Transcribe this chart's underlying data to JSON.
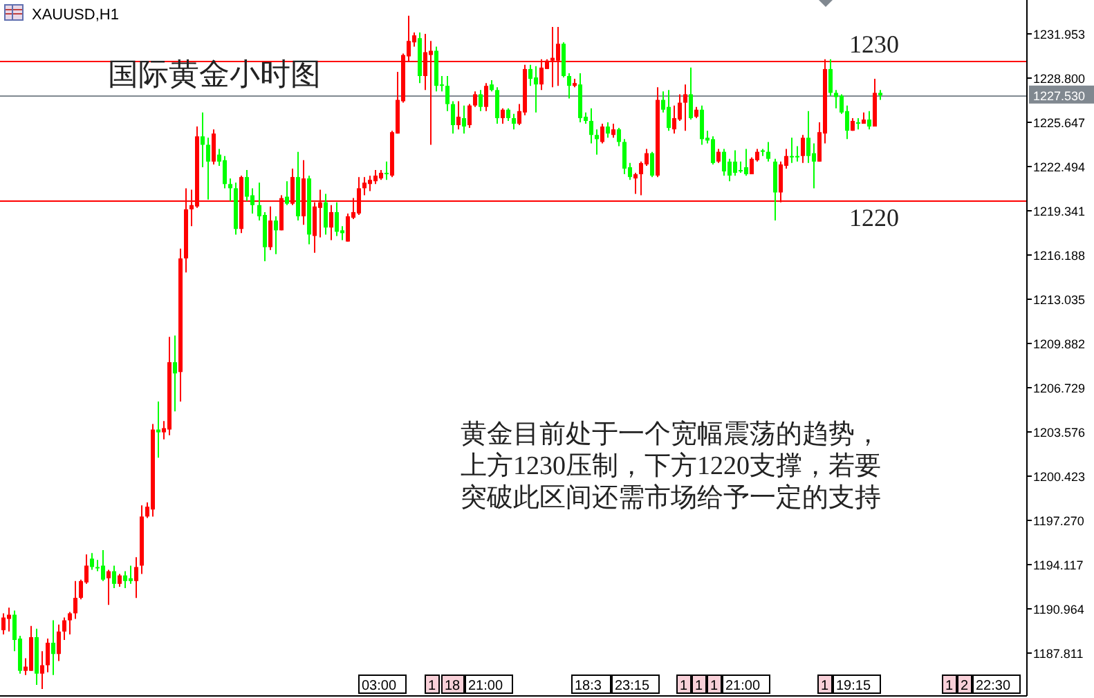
{
  "chart_data": {
    "type": "candlestick",
    "title": "国际黄金小时图",
    "subtitle": "XAUUSD,H1",
    "annotations": [
      "黄金目前处于一个宽幅震荡的趋势，",
      "上方1230压制，下方1220支撑，若要",
      "突破此区间还需市场给予一定的支持",
      "03:00",
      "1",
      "18",
      "21:00",
      "18:3",
      "23:15",
      "1",
      "1",
      "1",
      "21:00",
      "1",
      "19:15",
      "1",
      "2",
      "22:30"
    ],
    "colors": [
      "#ff0000",
      "#ff0000",
      "#00ff00",
      "#00ff00",
      "#ff0000",
      "#ff0000",
      "#00ff00",
      "#ff0000",
      "#ff0000",
      "#00ff00",
      "#ff0000",
      "#ff0000",
      "#ff0000",
      "#ff0000",
      "#ff0000",
      "#ff0000",
      "#00ff00",
      "#00ff00",
      "#00ff00",
      "#ff0000",
      "#00ff00",
      "#ff0000",
      "#00ff00",
      "#00ff00",
      "#ff0000",
      "#ff0000",
      "#ff0000",
      "#ff0000",
      "#00ff00",
      "#ff0000",
      "#ff0000",
      "#00ff00",
      "#ff0000",
      "#ff0000",
      "#ff0000",
      "#ff0000",
      "#00ff00",
      "#00ff00",
      "#ff0000",
      "#00ff00",
      "#00ff00",
      "#00ff00",
      "#00ff00",
      "#ff0000",
      "#00ff00",
      "#00ff00",
      "#00ff00",
      "#00ff00",
      "#ff0000",
      "#00ff00",
      "#ff0000",
      "#00ff00",
      "#ff0000",
      "#00ff00",
      "#ff0000",
      "#00ff00",
      "#ff0000",
      "#ff0000",
      "#00ff00",
      "#ff0000",
      "#00ff00",
      "#00ff00",
      "#ff0000",
      "#ff0000",
      "#ff0000",
      "#ff0000",
      "#ff0000",
      "#ff0000",
      "#ff0000",
      "#00ff00",
      "#ff0000",
      "#ff0000",
      "#ff0000",
      "#ff0000",
      "#ff0000",
      "#00ff00",
      "#ff0000",
      "#ff0000",
      "#00ff00",
      "#00ff00",
      "#00ff00",
      "#00ff00",
      "#ff0000",
      "#00ff00",
      "#ff0000",
      "#ff0000",
      "#00ff00",
      "#ff0000",
      "#00ff00",
      "#00ff00",
      "#ff0000",
      "#00ff00",
      "#00ff00",
      "#ff0000",
      "#ff0000",
      "#00ff00",
      "#00ff00",
      "#ff0000",
      "#ff0000",
      "#ff0000",
      "#ff0000",
      "#00ff00",
      "#00ff00",
      "#ff0000",
      "#00ff00",
      "#00ff00",
      "#00ff00",
      "#00ff00",
      "#ff0000",
      "#00ff00",
      "#ff0000",
      "#00ff00",
      "#00ff00",
      "#00ff00",
      "#ff0000",
      "#ff0000",
      "#ff0000",
      "#00ff00",
      "#ff0000",
      "#00ff00",
      "#00ff00",
      "#ff0000",
      "#ff0000",
      "#ff0000",
      "#00ff00",
      "#ff0000",
      "#00ff00",
      "#00ff00",
      "#00ff00",
      "#ff0000",
      "#00ff00",
      "#00ff00",
      "#00ff00",
      "#00ff00",
      "#00ff00",
      "#ff0000",
      "#ff0000",
      "#00ff00",
      "#00ff00",
      "#00ff00",
      "#ff0000",
      "#ff0000",
      "#00ff00",
      "#00ff00",
      "#ff0000",
      "#00ff00",
      "#00ff00",
      "#ff0000",
      "#ff0000",
      "#00ff00",
      "#00ff00",
      "#00ff00",
      "#00ff00",
      "#ff0000",
      "#00ff00",
      "#ff0000",
      "#00ff00",
      "#ff0000",
      "#00ff00",
      null,
      null,
      null,
      null,
      null,
      null,
      null,
      null,
      null,
      null,
      null,
      null,
      null,
      null,
      null,
      null,
      null,
      null,
      null,
      null,
      null,
      null,
      null,
      null,
      null,
      null
    ],
    "tick_labels": "y",
    "ylim": [
      1184.76,
      1234.32
    ],
    "yticks": [
      {
        "value": 1187.811,
        "label": "1187.811"
      },
      {
        "value": 1190.964,
        "label": "1190.964"
      },
      {
        "value": 1194.117,
        "label": "1194.117"
      },
      {
        "value": 1197.27,
        "label": "1197.270"
      },
      {
        "value": 1200.423,
        "label": "1200.423"
      },
      {
        "value": 1203.576,
        "label": "1203.576"
      },
      {
        "value": 1206.729,
        "label": "1206.729"
      },
      {
        "value": 1209.882,
        "label": "1209.882"
      },
      {
        "value": 1213.035,
        "label": "1213.035"
      },
      {
        "value": 1216.188,
        "label": "1216.188"
      },
      {
        "value": 1219.341,
        "label": "1219.341"
      },
      {
        "value": 1222.494,
        "label": "1222.494"
      },
      {
        "value": 1225.647,
        "label": "1225.647"
      },
      {
        "value": 1228.8,
        "label": "1228.800"
      },
      {
        "value": 1231.953,
        "label": "1231.953"
      }
    ],
    "ref_lines": [
      {
        "axis": "y",
        "value": 1230,
        "label": "1230",
        "color": "#ff0000"
      },
      {
        "axis": "y",
        "value": 1220,
        "label": "1220",
        "color": "#ff0000"
      },
      {
        "axis": "y",
        "value": 1227.53,
        "label": "1227.530",
        "color": "#808890"
      }
    ],
    "categories": [
      null,
      null,
      null,
      null,
      null,
      null,
      null,
      null,
      null,
      null,
      null,
      null,
      null,
      null,
      null,
      null,
      null,
      null,
      null,
      null,
      null,
      null,
      null,
      null,
      null,
      null,
      null,
      null,
      null,
      null,
      null,
      null,
      null,
      null,
      null,
      null,
      null,
      null,
      null,
      null,
      null,
      null,
      null,
      null,
      null,
      null,
      null,
      null,
      null,
      null,
      null,
      null,
      null,
      null,
      null,
      null,
      null,
      null,
      null,
      null,
      null,
      null,
      null,
      null,
      null,
      null,
      null,
      null,
      null,
      null,
      null,
      null,
      null,
      null,
      null,
      null,
      null,
      null,
      null,
      null,
      null,
      null,
      null,
      null,
      null,
      null,
      null,
      null,
      null,
      null,
      null,
      null,
      null,
      null,
      null,
      null,
      null,
      null,
      null,
      null,
      null,
      null,
      null,
      null,
      null,
      null,
      null,
      null,
      null,
      null,
      null,
      null,
      null,
      null,
      null,
      null,
      null,
      null,
      null,
      null,
      null,
      null,
      null,
      null,
      null,
      null,
      null,
      null,
      null,
      null,
      null,
      null,
      null,
      null,
      null,
      null,
      null,
      null,
      null,
      null,
      null,
      null,
      null,
      null,
      null,
      null,
      null,
      null,
      null,
      null,
      null,
      null,
      null,
      null,
      null,
      null,
      null,
      null,
      null,
      null,
      null,
      null,
      null,
      null,
      null,
      null,
      null,
      null,
      null,
      null,
      null,
      null,
      null,
      null,
      null,
      null,
      null,
      null,
      null,
      null,
      null,
      null,
      null,
      null,
      null
    ],
    "ohlc": [
      [
        1189.4,
        1190.6,
        1189.1,
        1190.3
      ],
      [
        1190.2,
        1191.0,
        1189.3,
        1190.5
      ],
      [
        1190.5,
        1190.8,
        1187.9,
        1188.7
      ],
      [
        1188.8,
        1189.0,
        1186.3,
        1186.5
      ],
      [
        1186.5,
        1187.4,
        1186.2,
        1186.8
      ],
      [
        1186.5,
        1189.7,
        1186.5,
        1188.9
      ],
      [
        1188.9,
        1189.5,
        1185.5,
        1186.3
      ],
      [
        1186.3,
        1187.9,
        1185.2,
        1186.9
      ],
      [
        1186.9,
        1188.8,
        1186.4,
        1188.5
      ],
      [
        1188.5,
        1190.1,
        1186.2,
        1187.7
      ],
      [
        1187.7,
        1189.8,
        1187.2,
        1189.3
      ],
      [
        1189.3,
        1190.3,
        1188.7,
        1190.1
      ],
      [
        1190.1,
        1190.7,
        1189.1,
        1190.6
      ],
      [
        1190.6,
        1192.9,
        1190.2,
        1191.7
      ],
      [
        1191.7,
        1193.0,
        1191.6,
        1192.9
      ],
      [
        1192.8,
        1194.8,
        1192.7,
        1194.0
      ],
      [
        1194.5,
        1194.9,
        1193.7,
        1193.9
      ],
      [
        1193.9,
        1194.4,
        1193.6,
        1193.8
      ],
      [
        1194.0,
        1195.1,
        1192.9,
        1193.0
      ],
      [
        1193.1,
        1193.7,
        1191.2,
        1193.6
      ],
      [
        1193.6,
        1194.0,
        1192.4,
        1192.7
      ],
      [
        1192.7,
        1193.4,
        1192.5,
        1193.3
      ],
      [
        1193.3,
        1193.6,
        1192.4,
        1192.9
      ],
      [
        1193.1,
        1194.0,
        1192.7,
        1192.9
      ],
      [
        1192.9,
        1194.6,
        1191.7,
        1193.9
      ],
      [
        1194.0,
        1198.3,
        1193.4,
        1197.5
      ],
      [
        1197.5,
        1198.5,
        1197.4,
        1198.2
      ],
      [
        1198.0,
        1204.1,
        1197.5,
        1203.7
      ],
      [
        1203.7,
        1205.7,
        1201.7,
        1203.5
      ],
      [
        1203.5,
        1204.3,
        1203.0,
        1203.8
      ],
      [
        1203.7,
        1210.3,
        1203.3,
        1208.5
      ],
      [
        1208.5,
        1210.4,
        1205.0,
        1207.7
      ],
      [
        1207.8,
        1216.6,
        1205.7,
        1215.9
      ],
      [
        1215.9,
        1220.9,
        1214.9,
        1219.4
      ],
      [
        1219.4,
        1220.8,
        1218.2,
        1219.7
      ],
      [
        1219.6,
        1225.3,
        1219.5,
        1224.6
      ],
      [
        1224.6,
        1226.3,
        1222.4,
        1224.0
      ],
      [
        1224.0,
        1224.5,
        1220.1,
        1222.8
      ],
      [
        1222.8,
        1225.1,
        1222.6,
        1224.8
      ],
      [
        1223.3,
        1223.7,
        1222.5,
        1222.8
      ],
      [
        1222.9,
        1223.2,
        1220.9,
        1221.2
      ],
      [
        1221.2,
        1221.6,
        1220.0,
        1220.9
      ],
      [
        1220.9,
        1221.3,
        1217.6,
        1218.0
      ],
      [
        1218.0,
        1221.8,
        1217.7,
        1221.7
      ],
      [
        1221.7,
        1222.2,
        1220.0,
        1220.3
      ],
      [
        1220.4,
        1220.9,
        1219.1,
        1219.7
      ],
      [
        1219.7,
        1221.3,
        1218.6,
        1218.9
      ],
      [
        1219.0,
        1219.2,
        1215.7,
        1216.7
      ],
      [
        1216.7,
        1219.6,
        1216.5,
        1218.6
      ],
      [
        1218.6,
        1218.9,
        1216.2,
        1217.9
      ],
      [
        1217.9,
        1220.4,
        1217.9,
        1220.2
      ],
      [
        1220.3,
        1221.4,
        1219.7,
        1219.8
      ],
      [
        1219.8,
        1222.3,
        1219.7,
        1221.7
      ],
      [
        1221.7,
        1223.5,
        1218.6,
        1218.9
      ],
      [
        1218.9,
        1222.9,
        1218.3,
        1221.6
      ],
      [
        1221.6,
        1221.8,
        1216.9,
        1217.6
      ],
      [
        1217.5,
        1219.9,
        1216.3,
        1219.6
      ],
      [
        1219.5,
        1220.8,
        1217.4,
        1219.9
      ],
      [
        1219.9,
        1220.5,
        1217.6,
        1218.1
      ],
      [
        1218.1,
        1219.7,
        1217.2,
        1219.2
      ],
      [
        1219.2,
        1219.9,
        1217.5,
        1217.8
      ],
      [
        1217.9,
        1218.2,
        1217.2,
        1217.7
      ],
      [
        1217.1,
        1219.1,
        1217.1,
        1218.9
      ],
      [
        1218.8,
        1220.2,
        1218.7,
        1219.2
      ],
      [
        1219.1,
        1221.7,
        1219.0,
        1220.9
      ],
      [
        1220.9,
        1221.7,
        1220.4,
        1221.3
      ],
      [
        1221.2,
        1221.8,
        1220.7,
        1221.5
      ],
      [
        1221.4,
        1222.2,
        1221.2,
        1221.8
      ],
      [
        1221.6,
        1222.2,
        1221.5,
        1222.0
      ],
      [
        1222.0,
        1222.8,
        1221.5,
        1221.9
      ],
      [
        1221.8,
        1225.0,
        1221.7,
        1224.9
      ],
      [
        1224.8,
        1229.2,
        1224.8,
        1227.2
      ],
      [
        1227.1,
        1230.5,
        1227.0,
        1230.4
      ],
      [
        1230.3,
        1233.2,
        1229.9,
        1231.4
      ],
      [
        1231.3,
        1232.0,
        1231.0,
        1231.8
      ],
      [
        1231.6,
        1232.0,
        1228.4,
        1228.9
      ],
      [
        1228.9,
        1231.9,
        1227.9,
        1230.6
      ],
      [
        1230.4,
        1231.4,
        1224.0,
        1230.7
      ],
      [
        1230.7,
        1231.0,
        1227.8,
        1228.2
      ],
      [
        1228.3,
        1228.9,
        1227.8,
        1228.2
      ],
      [
        1228.2,
        1228.9,
        1226.4,
        1226.9
      ],
      [
        1226.9,
        1227.1,
        1224.8,
        1225.4
      ],
      [
        1225.4,
        1227.1,
        1225.1,
        1226.0
      ],
      [
        1225.9,
        1226.8,
        1224.8,
        1225.3
      ],
      [
        1225.4,
        1226.9,
        1225.2,
        1226.8
      ],
      [
        1226.8,
        1227.8,
        1226.7,
        1227.6
      ],
      [
        1227.6,
        1227.9,
        1226.4,
        1226.7
      ],
      [
        1226.7,
        1228.4,
        1226.4,
        1228.2
      ],
      [
        1228.3,
        1228.6,
        1227.8,
        1227.9
      ],
      [
        1227.9,
        1228.1,
        1225.5,
        1225.9
      ],
      [
        1225.9,
        1226.6,
        1225.5,
        1226.5
      ],
      [
        1226.5,
        1226.6,
        1225.7,
        1225.9
      ],
      [
        1225.9,
        1226.2,
        1225.1,
        1225.5
      ],
      [
        1225.5,
        1226.9,
        1225.4,
        1226.4
      ],
      [
        1226.3,
        1229.7,
        1226.1,
        1229.4
      ],
      [
        1229.4,
        1229.7,
        1228.2,
        1228.7
      ],
      [
        1228.8,
        1229.6,
        1226.3,
        1228.3
      ],
      [
        1228.3,
        1230.1,
        1227.9,
        1229.5
      ],
      [
        1229.4,
        1230.1,
        1229.4,
        1230.0
      ],
      [
        1230.0,
        1232.4,
        1228.1,
        1230.2
      ],
      [
        1230.0,
        1232.4,
        1228.2,
        1231.2
      ],
      [
        1231.2,
        1231.3,
        1228.8,
        1228.9
      ],
      [
        1228.9,
        1229.1,
        1227.3,
        1228.2
      ],
      [
        1228.2,
        1228.7,
        1228.1,
        1228.4
      ],
      [
        1228.3,
        1229.1,
        1225.6,
        1225.9
      ],
      [
        1226.0,
        1226.3,
        1225.5,
        1225.7
      ],
      [
        1225.7,
        1226.6,
        1224.1,
        1224.7
      ],
      [
        1224.7,
        1225.1,
        1223.3,
        1224.4
      ],
      [
        1224.2,
        1225.5,
        1224.1,
        1225.3
      ],
      [
        1225.3,
        1225.6,
        1224.5,
        1224.8
      ],
      [
        1224.7,
        1225.5,
        1224.5,
        1225.1
      ],
      [
        1225.1,
        1225.2,
        1223.9,
        1224.2
      ],
      [
        1224.2,
        1224.4,
        1221.9,
        1222.3
      ],
      [
        1222.4,
        1222.7,
        1221.5,
        1221.7
      ],
      [
        1221.6,
        1222.0,
        1220.5,
        1221.9
      ],
      [
        1221.9,
        1222.8,
        1220.4,
        1222.7
      ],
      [
        1222.6,
        1223.7,
        1222.5,
        1223.4
      ],
      [
        1223.4,
        1223.5,
        1221.7,
        1221.8
      ],
      [
        1221.8,
        1228.1,
        1221.7,
        1227.2
      ],
      [
        1227.2,
        1227.8,
        1226.3,
        1226.5
      ],
      [
        1226.7,
        1227.9,
        1225.0,
        1225.2
      ],
      [
        1225.1,
        1226.8,
        1224.8,
        1225.9
      ],
      [
        1225.8,
        1227.6,
        1225.7,
        1227.0
      ],
      [
        1227.0,
        1228.3,
        1225.0,
        1227.6
      ],
      [
        1227.6,
        1229.5,
        1225.8,
        1225.9
      ],
      [
        1226.0,
        1226.7,
        1225.9,
        1226.5
      ],
      [
        1226.5,
        1226.8,
        1224.0,
        1224.4
      ],
      [
        1224.5,
        1225.0,
        1224.1,
        1224.3
      ],
      [
        1224.4,
        1224.6,
        1222.6,
        1222.7
      ],
      [
        1222.8,
        1223.7,
        1222.7,
        1223.5
      ],
      [
        1223.5,
        1223.7,
        1221.8,
        1222.1
      ],
      [
        1222.8,
        1223.0,
        1221.4,
        1221.8
      ],
      [
        1222.8,
        1223.6,
        1221.8,
        1222.0
      ],
      [
        1222.2,
        1222.8,
        1222.0,
        1222.1
      ],
      [
        1222.4,
        1223.7,
        1221.8,
        1221.9
      ],
      [
        1221.9,
        1223.1,
        1221.9,
        1223.0
      ],
      [
        1222.9,
        1223.7,
        1222.8,
        1223.5
      ],
      [
        1223.6,
        1223.7,
        1223.2,
        1223.5
      ],
      [
        1223.5,
        1224.2,
        1222.8,
        1223.0
      ],
      [
        1222.8,
        1223.0,
        1218.6,
        1220.6
      ],
      [
        1220.6,
        1222.8,
        1219.9,
        1222.6
      ],
      [
        1222.5,
        1223.7,
        1222.3,
        1223.2
      ],
      [
        1223.2,
        1224.5,
        1222.7,
        1223.1
      ],
      [
        1223.2,
        1223.9,
        1222.8,
        1223.1
      ],
      [
        1223.2,
        1224.7,
        1222.7,
        1224.5
      ],
      [
        1224.5,
        1226.4,
        1222.7,
        1223.2
      ],
      [
        1223.4,
        1224.1,
        1220.9,
        1222.8
      ],
      [
        1222.8,
        1225.6,
        1222.8,
        1224.9
      ],
      [
        1224.8,
        1230.1,
        1224.1,
        1229.4
      ],
      [
        1229.4,
        1230.1,
        1227.5,
        1227.7
      ],
      [
        1227.7,
        1227.9,
        1226.6,
        1227.4
      ],
      [
        1227.5,
        1227.6,
        1226.2,
        1226.3
      ],
      [
        1226.4,
        1226.8,
        1224.4,
        1225.0
      ],
      [
        1225.0,
        1225.9,
        1225.0,
        1225.7
      ],
      [
        1225.6,
        1225.9,
        1225.1,
        1225.5
      ],
      [
        1225.5,
        1226.3,
        1225.5,
        1225.8
      ],
      [
        1225.8,
        1226.4,
        1225.1,
        1225.3
      ],
      [
        1225.3,
        1228.7,
        1225.3,
        1227.7
      ],
      [
        1227.7,
        1227.9,
        1227.2,
        1227.53
      ],
      null,
      null,
      null,
      null,
      null,
      null,
      null,
      null,
      null,
      null,
      null,
      null,
      null,
      null,
      null,
      null,
      null,
      null,
      null,
      null,
      null,
      null,
      null,
      null,
      null,
      null
    ]
  }
}
